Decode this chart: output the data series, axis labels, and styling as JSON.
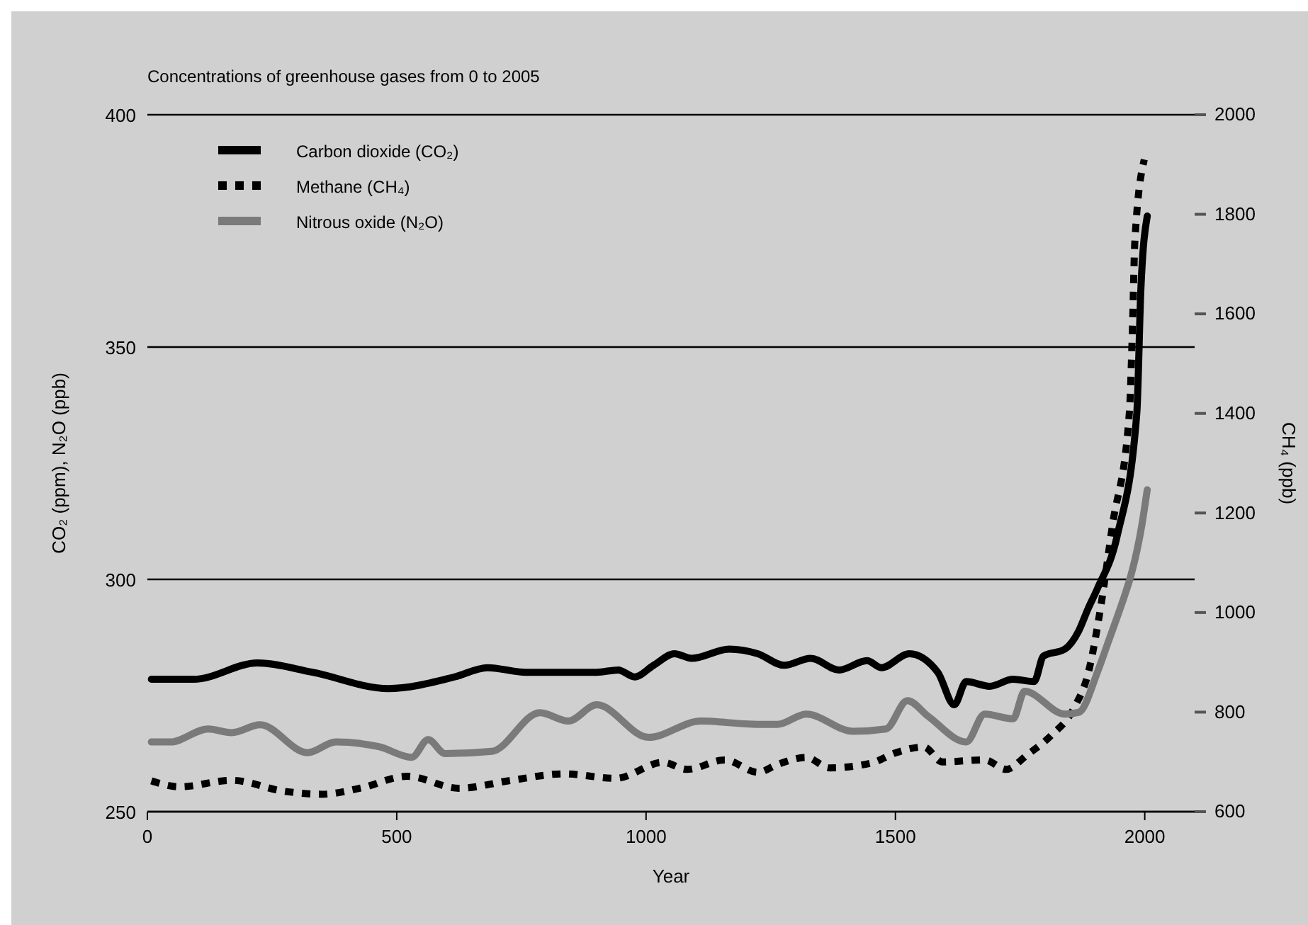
{
  "chart_data": {
    "type": "line",
    "title": "Concentrations of greenhouse gases from 0 to 2005",
    "xlabel": "Year",
    "ylabel": "CO₂ (ppm), N₂O (ppb)",
    "y2label": "CH₄ (ppb)",
    "xlim": [
      0,
      2100
    ],
    "xticks": [
      0,
      500,
      1000,
      1500,
      2000
    ],
    "ylim": [
      250,
      400
    ],
    "yticks": [
      250,
      300,
      350,
      400
    ],
    "y2lim": [
      600,
      2000
    ],
    "y2ticks": [
      600,
      800,
      1000,
      1200,
      1400,
      1600,
      1800,
      2000
    ],
    "grid": "y",
    "legend": "top left",
    "series": [
      {
        "name": "Carbon dioxide (CO₂)",
        "color": "#000000",
        "line_style": "solid",
        "x": [
          8,
          93,
          221,
          331,
          483,
          616,
          682,
          759,
          901,
          944,
          977,
          1015,
          1057,
          1091,
          1167,
          1224,
          1277,
          1330,
          1387,
          1443,
          1472,
          1528,
          1585,
          1618,
          1642,
          1689,
          1736,
          1778,
          1797,
          1840,
          1868,
          1886,
          1905,
          1945,
          1984,
          1992,
          2005
        ],
        "values": [
          278.5,
          278.5,
          282,
          280,
          276.5,
          279,
          281,
          280,
          280,
          280.5,
          279,
          281.5,
          284,
          283,
          285,
          284,
          281.5,
          283,
          280.5,
          282.5,
          281,
          284,
          280,
          273,
          278,
          277,
          278.5,
          278,
          283.5,
          285,
          289,
          293.6,
          298,
          309.5,
          335.7,
          361.9,
          378.2
        ]
      },
      {
        "name": "Methane (CH₄)",
        "color": "#000000",
        "line_style": "dotted",
        "axis": "y2",
        "x": [
          8,
          65,
          169,
          274,
          350,
          426,
          521,
          625,
          730,
          835,
          939,
          1034,
          1082,
          1158,
          1224,
          1264,
          1321,
          1368,
          1453,
          1500,
          1557,
          1594,
          1679,
          1722,
          1764,
          1811,
          1858,
          1887,
          1911,
          1935,
          1969,
          1976,
          1980,
          1999
        ],
        "values": [
          662,
          650,
          663,
          641,
          635,
          647,
          671,
          647,
          663,
          676,
          667,
          699,
          685,
          704,
          679,
          695,
          709,
          688,
          698,
          718,
          730,
          700,
          704,
          685,
          714,
          752,
          808,
          880,
          1007,
          1174,
          1400,
          1596,
          1743,
          1910
        ]
      },
      {
        "name": "Nitrous oxide (N₂O)",
        "color": "#7a7a7a",
        "line_style": "solid",
        "x": [
          8,
          46,
          122,
          169,
          226,
          321,
          378,
          464,
          530,
          563,
          597,
          691,
          787,
          844,
          901,
          1005,
          1110,
          1224,
          1264,
          1321,
          1415,
          1481,
          1524,
          1566,
          1642,
          1679,
          1736,
          1759,
          1840,
          1868,
          1905,
          1926,
          1962,
          1970,
          1994,
          2005
        ],
        "values": [
          265,
          265,
          267.8,
          267,
          268.7,
          262.7,
          265,
          264,
          261.7,
          265.5,
          262.5,
          263,
          271.3,
          269.5,
          273,
          266,
          269.5,
          268.8,
          268.8,
          271,
          267.3,
          267.8,
          273.9,
          270.5,
          265,
          271,
          270,
          275.9,
          271,
          271.4,
          280,
          286.3,
          297.3,
          300,
          311.6,
          319.3
        ]
      }
    ]
  }
}
